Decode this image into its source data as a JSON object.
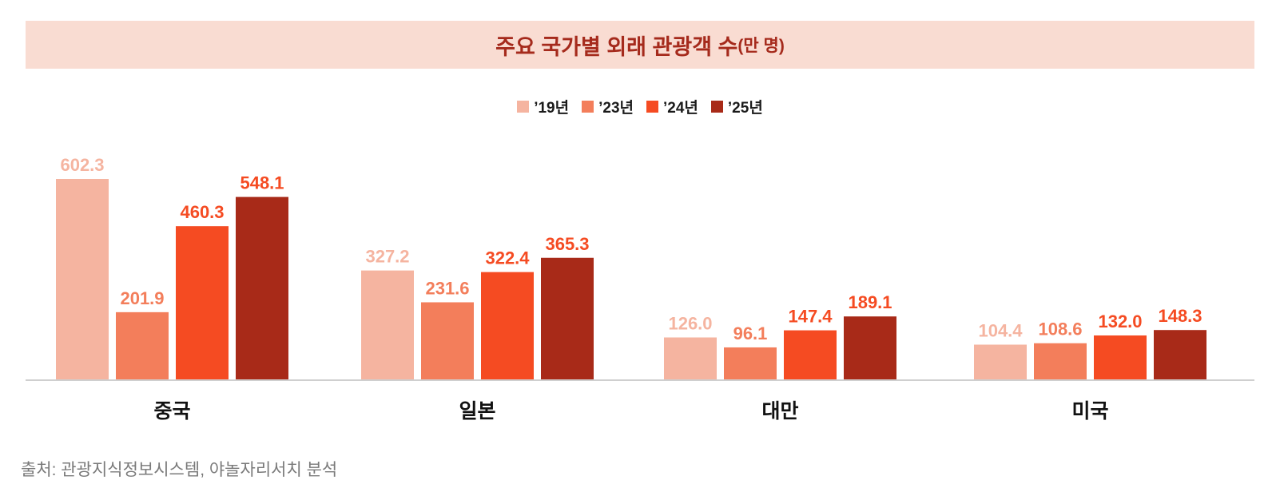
{
  "title": {
    "main": "주요 국가별 외래 관광객 수",
    "unit": "(만 명)"
  },
  "chart_data": {
    "type": "bar",
    "categories": [
      "중국",
      "일본",
      "대만",
      "미국"
    ],
    "series": [
      {
        "name": "’19년",
        "color": "#f5b4a0",
        "values": [
          602.3,
          327.2,
          126.0,
          104.4
        ]
      },
      {
        "name": "’23년",
        "color": "#f37e5b",
        "values": [
          201.9,
          231.6,
          96.1,
          108.6
        ]
      },
      {
        "name": "’24년",
        "color": "#f54b22",
        "values": [
          460.3,
          322.4,
          147.4,
          132.0
        ]
      },
      {
        "name": "’25년",
        "color": "#a82a18",
        "values": [
          548.1,
          365.3,
          189.1,
          148.3
        ]
      }
    ],
    "ylim": [
      0,
      602.3
    ],
    "grid": false,
    "legend_position": "top-center",
    "data_labels": true
  },
  "source": "출처: 관광지식정보시스템, 야놀자리서치 분석"
}
